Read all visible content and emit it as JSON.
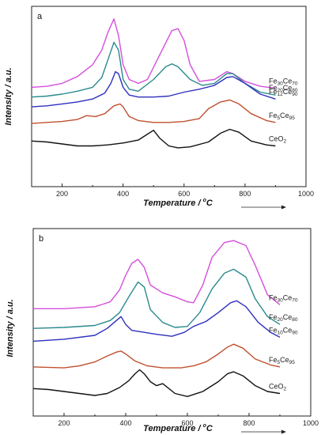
{
  "chart_data": [
    {
      "panel_label": "a",
      "type": "line",
      "xlabel": "Temperature / °C",
      "xlabel_main": "Temperature / ",
      "xlabel_unit": "C",
      "ylabel": "Intensity / a.u.",
      "xlim": [
        100,
        1000
      ],
      "xticks": [
        "200",
        "400",
        "600",
        "800",
        "1000"
      ],
      "series": [
        {
          "name": "Fe30Ce70",
          "label_base1": "Fe",
          "label_sub1": "30",
          "label_base2": "Ce",
          "label_sub2": "70",
          "color": "#d44fdc",
          "x": [
            100,
            150,
            200,
            250,
            300,
            330,
            350,
            370,
            385,
            400,
            420,
            450,
            480,
            520,
            560,
            580,
            600,
            620,
            650,
            700,
            740,
            760,
            800,
            850,
            900
          ],
          "y": [
            0.22,
            0.23,
            0.26,
            0.33,
            0.45,
            0.6,
            0.78,
            0.92,
            0.75,
            0.45,
            0.3,
            0.26,
            0.3,
            0.55,
            0.8,
            0.82,
            0.7,
            0.45,
            0.28,
            0.3,
            0.38,
            0.36,
            0.28,
            0.23,
            0.21
          ]
        },
        {
          "name": "Fe20Ce80",
          "label_base1": "Fe",
          "label_sub1": "20",
          "label_base2": "Ce",
          "label_sub2": "80",
          "color": "#2a8a8c",
          "x": [
            100,
            150,
            200,
            250,
            300,
            330,
            350,
            370,
            385,
            400,
            420,
            450,
            500,
            540,
            560,
            580,
            620,
            660,
            700,
            740,
            760,
            800,
            850,
            900
          ],
          "y": [
            0.12,
            0.13,
            0.15,
            0.18,
            0.22,
            0.32,
            0.5,
            0.68,
            0.6,
            0.3,
            0.2,
            0.18,
            0.3,
            0.43,
            0.46,
            0.43,
            0.3,
            0.24,
            0.26,
            0.36,
            0.36,
            0.26,
            0.17,
            0.14
          ]
        },
        {
          "name": "Fe12Ce90",
          "label_base1": "Fe",
          "label_sub1": "12",
          "label_base2": "Ce",
          "label_sub2": "90",
          "color": "#2f2fbf",
          "x": [
            100,
            150,
            200,
            250,
            300,
            340,
            360,
            375,
            385,
            400,
            420,
            450,
            500,
            550,
            600,
            650,
            700,
            740,
            760,
            800,
            850,
            900
          ],
          "y": [
            0.02,
            0.03,
            0.05,
            0.07,
            0.1,
            0.16,
            0.26,
            0.38,
            0.36,
            0.22,
            0.14,
            0.12,
            0.12,
            0.13,
            0.17,
            0.2,
            0.24,
            0.32,
            0.33,
            0.26,
            0.15,
            0.1
          ]
        },
        {
          "name": "Fe5Ce95",
          "label_base1": "Fe",
          "label_sub1": "5",
          "label_base2": "Ce",
          "label_sub2": "95",
          "color": "#c0502f",
          "x": [
            100,
            150,
            200,
            250,
            280,
            310,
            340,
            370,
            390,
            400,
            420,
            450,
            500,
            550,
            600,
            650,
            680,
            720,
            750,
            780,
            820,
            870,
            900
          ],
          "y": [
            -0.15,
            -0.14,
            -0.13,
            -0.11,
            -0.07,
            -0.08,
            -0.05,
            0.03,
            0.05,
            0.02,
            -0.08,
            -0.12,
            -0.14,
            -0.14,
            -0.13,
            -0.1,
            0.0,
            0.07,
            0.09,
            0.05,
            -0.05,
            -0.12,
            -0.14
          ]
        },
        {
          "name": "CeO2",
          "label_base1": "CeO",
          "label_sub1": "2",
          "label_base2": "",
          "label_sub2": "",
          "color": "#111111",
          "x": [
            100,
            150,
            200,
            250,
            300,
            350,
            400,
            450,
            480,
            500,
            520,
            550,
            580,
            620,
            680,
            720,
            750,
            780,
            820,
            870,
            900
          ],
          "y": [
            -0.33,
            -0.34,
            -0.36,
            -0.38,
            -0.38,
            -0.37,
            -0.35,
            -0.32,
            -0.26,
            -0.22,
            -0.3,
            -0.38,
            -0.4,
            -0.39,
            -0.34,
            -0.25,
            -0.21,
            -0.24,
            -0.33,
            -0.37,
            -0.38
          ]
        }
      ]
    },
    {
      "panel_label": "b",
      "type": "line",
      "xlabel": "Temperature / °C",
      "xlabel_main": "Temperature / ",
      "xlabel_unit": "C",
      "ylabel": "Intensity / a.u.",
      "xlim": [
        100,
        1000
      ],
      "xticks": [
        "200",
        "400",
        "600",
        "800",
        "1000"
      ],
      "series": [
        {
          "name": "Fe30Ce70",
          "label_base1": "Fe",
          "label_sub1": "30",
          "label_base2": "Ce",
          "label_sub2": "70",
          "color": "#d44fdc",
          "x": [
            100,
            200,
            300,
            350,
            380,
            400,
            420,
            440,
            460,
            480,
            520,
            560,
            600,
            620,
            650,
            680,
            720,
            750,
            790,
            820,
            860,
            900
          ],
          "y": [
            0.26,
            0.26,
            0.28,
            0.33,
            0.45,
            0.6,
            0.72,
            0.76,
            0.68,
            0.5,
            0.42,
            0.38,
            0.33,
            0.32,
            0.5,
            0.78,
            0.93,
            0.95,
            0.9,
            0.7,
            0.4,
            0.3
          ]
        },
        {
          "name": "Fe20Ce80",
          "label_base1": "Fe",
          "label_sub1": "20",
          "label_base2": "Ce",
          "label_sub2": "80",
          "color": "#2a8a8c",
          "x": [
            100,
            200,
            300,
            350,
            380,
            410,
            440,
            460,
            480,
            520,
            560,
            600,
            640,
            680,
            720,
            750,
            790,
            820,
            860,
            900
          ],
          "y": [
            0.06,
            0.07,
            0.09,
            0.14,
            0.22,
            0.38,
            0.53,
            0.48,
            0.25,
            0.12,
            0.07,
            0.08,
            0.22,
            0.46,
            0.62,
            0.66,
            0.58,
            0.36,
            0.18,
            0.1
          ]
        },
        {
          "name": "Fe10Ce90",
          "label_base1": "Fe",
          "label_sub1": "10",
          "label_base2": "Ce",
          "label_sub2": "90",
          "color": "#2f2fbf",
          "x": [
            100,
            200,
            300,
            340,
            370,
            385,
            400,
            420,
            460,
            500,
            550,
            590,
            620,
            660,
            700,
            740,
            760,
            790,
            830,
            870,
            900
          ],
          "y": [
            -0.07,
            -0.05,
            -0.01,
            0.06,
            0.14,
            0.18,
            0.1,
            0.04,
            0.02,
            0.0,
            -0.02,
            0.02,
            0.08,
            0.13,
            0.22,
            0.32,
            0.34,
            0.28,
            0.12,
            0.02,
            -0.03
          ]
        },
        {
          "name": "Fe5Ce95",
          "label_base1": "Fe",
          "label_sub1": "5",
          "label_base2": "Ce",
          "label_sub2": "95",
          "color": "#c0502f",
          "x": [
            100,
            200,
            250,
            300,
            340,
            370,
            385,
            400,
            430,
            470,
            520,
            580,
            620,
            660,
            700,
            730,
            750,
            780,
            820,
            870,
            900
          ],
          "y": [
            -0.33,
            -0.34,
            -0.32,
            -0.28,
            -0.22,
            -0.18,
            -0.17,
            -0.2,
            -0.27,
            -0.32,
            -0.34,
            -0.34,
            -0.32,
            -0.28,
            -0.2,
            -0.13,
            -0.1,
            -0.14,
            -0.25,
            -0.31,
            -0.33
          ]
        },
        {
          "name": "CeO2",
          "label_base1": "CeO",
          "label_sub1": "2",
          "label_base2": "",
          "label_sub2": "",
          "color": "#111111",
          "x": [
            100,
            150,
            200,
            250,
            300,
            340,
            380,
            410,
            430,
            445,
            460,
            480,
            500,
            520,
            560,
            600,
            650,
            700,
            730,
            750,
            780,
            820,
            860,
            900
          ],
          "y": [
            -0.55,
            -0.56,
            -0.58,
            -0.6,
            -0.62,
            -0.6,
            -0.54,
            -0.47,
            -0.4,
            -0.36,
            -0.4,
            -0.48,
            -0.52,
            -0.5,
            -0.6,
            -0.63,
            -0.58,
            -0.48,
            -0.4,
            -0.38,
            -0.42,
            -0.52,
            -0.58,
            -0.6
          ]
        }
      ]
    }
  ]
}
